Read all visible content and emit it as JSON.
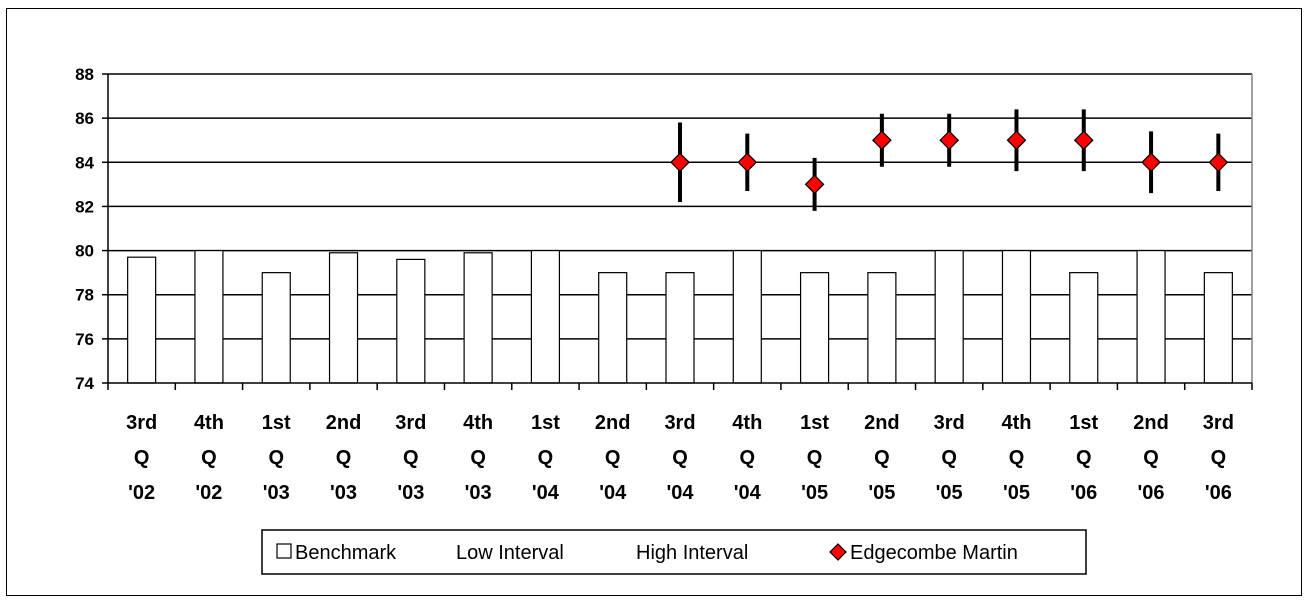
{
  "chart_data": {
    "type": "bar",
    "categories": [
      [
        "3rd",
        "Q",
        "'02"
      ],
      [
        "4th",
        "Q",
        "'02"
      ],
      [
        "1st",
        "Q",
        "'03"
      ],
      [
        "2nd",
        "Q",
        "'03"
      ],
      [
        "3rd",
        "Q",
        "'03"
      ],
      [
        "4th",
        "Q",
        "'03"
      ],
      [
        "1st",
        "Q",
        "'04"
      ],
      [
        "2nd",
        "Q",
        "'04"
      ],
      [
        "3rd",
        "Q",
        "'04"
      ],
      [
        "4th",
        "Q",
        "'04"
      ],
      [
        "1st",
        "Q",
        "'05"
      ],
      [
        "2nd",
        "Q",
        "'05"
      ],
      [
        "3rd",
        "Q",
        "'05"
      ],
      [
        "4th",
        "Q",
        "'05"
      ],
      [
        "1st",
        "Q",
        "'06"
      ],
      [
        "2nd",
        "Q",
        "'06"
      ],
      [
        "3rd",
        "Q",
        "'06"
      ]
    ],
    "series": [
      {
        "name": "Benchmark",
        "kind": "bar",
        "color": "#ffffff",
        "values": [
          79.7,
          80.0,
          79.0,
          79.9,
          79.6,
          79.9,
          80.0,
          79.0,
          79.0,
          80.0,
          79.0,
          79.0,
          80.0,
          80.0,
          79.0,
          80.0,
          79.0
        ]
      },
      {
        "name": "Low Interval",
        "kind": "errorbar-low",
        "values": [
          null,
          null,
          null,
          null,
          null,
          null,
          null,
          null,
          82.2,
          82.7,
          81.8,
          83.8,
          83.8,
          83.6,
          83.6,
          82.6,
          82.7
        ]
      },
      {
        "name": "High Interval",
        "kind": "errorbar-high",
        "values": [
          null,
          null,
          null,
          null,
          null,
          null,
          null,
          null,
          85.8,
          85.3,
          84.2,
          86.2,
          86.2,
          86.4,
          86.4,
          85.4,
          85.3
        ]
      },
      {
        "name": "Edgecombe Martin",
        "kind": "marker",
        "color": "#ff0000",
        "values": [
          null,
          null,
          null,
          null,
          null,
          null,
          null,
          null,
          84,
          84,
          83,
          85,
          85,
          85,
          85,
          84,
          84
        ]
      }
    ],
    "ylim": [
      74,
      88
    ],
    "yticks": [
      74,
      76,
      78,
      80,
      82,
      84,
      86,
      88
    ],
    "grid": true,
    "legend_position": "bottom"
  },
  "legend": {
    "items": [
      {
        "label": "Benchmark",
        "symbol": "box"
      },
      {
        "label": "Low Interval",
        "symbol": "none"
      },
      {
        "label": "High Interval",
        "symbol": "none"
      },
      {
        "label": "Edgecombe Martin",
        "symbol": "diamond"
      }
    ]
  }
}
